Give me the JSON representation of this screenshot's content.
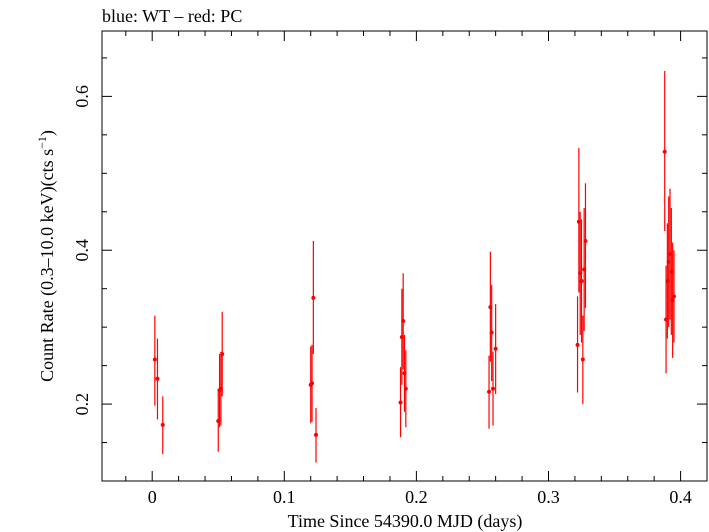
{
  "chart_data": {
    "type": "scatter",
    "title": "blue: WT – red: PC",
    "xlabel": "Time Since 54390.0 MJD (days)",
    "ylabel": "Count Rate (0.3–10.0 keV)(cts s",
    "ylabel_sup": "−1",
    "ylabel_tail": ")",
    "xlim": [
      -0.038,
      0.42
    ],
    "ylim": [
      0.1,
      0.685
    ],
    "x_ticks": [
      0,
      0.1,
      0.2,
      0.3,
      0.4
    ],
    "x_tick_labels": [
      "0",
      "0.1",
      "0.2",
      "0.3",
      "0.4"
    ],
    "y_ticks": [
      0.2,
      0.4,
      0.6
    ],
    "y_tick_labels": [
      "0.2",
      "0.4",
      "0.6"
    ],
    "series": [
      {
        "name": "PC",
        "color": "#ff0000",
        "points": [
          {
            "x": 0.002,
            "y": 0.258,
            "lo": 0.198,
            "hi": 0.315
          },
          {
            "x": 0.004,
            "y": 0.233,
            "lo": 0.18,
            "hi": 0.285
          },
          {
            "x": 0.008,
            "y": 0.173,
            "lo": 0.135,
            "hi": 0.21
          },
          {
            "x": 0.05,
            "y": 0.178,
            "lo": 0.138,
            "hi": 0.22
          },
          {
            "x": 0.051,
            "y": 0.218,
            "lo": 0.17,
            "hi": 0.265
          },
          {
            "x": 0.052,
            "y": 0.22,
            "lo": 0.172,
            "hi": 0.268
          },
          {
            "x": 0.053,
            "y": 0.265,
            "lo": 0.21,
            "hi": 0.32
          },
          {
            "x": 0.12,
            "y": 0.225,
            "lo": 0.175,
            "hi": 0.275
          },
          {
            "x": 0.121,
            "y": 0.227,
            "lo": 0.177,
            "hi": 0.277
          },
          {
            "x": 0.122,
            "y": 0.338,
            "lo": 0.265,
            "hi": 0.412
          },
          {
            "x": 0.124,
            "y": 0.16,
            "lo": 0.124,
            "hi": 0.195
          },
          {
            "x": 0.188,
            "y": 0.202,
            "lo": 0.157,
            "hi": 0.248
          },
          {
            "x": 0.189,
            "y": 0.287,
            "lo": 0.225,
            "hi": 0.35
          },
          {
            "x": 0.19,
            "y": 0.308,
            "lo": 0.245,
            "hi": 0.37
          },
          {
            "x": 0.191,
            "y": 0.24,
            "lo": 0.19,
            "hi": 0.29
          },
          {
            "x": 0.192,
            "y": 0.22,
            "lo": 0.17,
            "hi": 0.27
          },
          {
            "x": 0.255,
            "y": 0.216,
            "lo": 0.168,
            "hi": 0.263
          },
          {
            "x": 0.256,
            "y": 0.326,
            "lo": 0.255,
            "hi": 0.398
          },
          {
            "x": 0.257,
            "y": 0.293,
            "lo": 0.23,
            "hi": 0.355
          },
          {
            "x": 0.258,
            "y": 0.22,
            "lo": 0.172,
            "hi": 0.268
          },
          {
            "x": 0.26,
            "y": 0.272,
            "lo": 0.213,
            "hi": 0.33
          },
          {
            "x": 0.322,
            "y": 0.277,
            "lo": 0.215,
            "hi": 0.34
          },
          {
            "x": 0.323,
            "y": 0.437,
            "lo": 0.345,
            "hi": 0.533
          },
          {
            "x": 0.324,
            "y": 0.37,
            "lo": 0.29,
            "hi": 0.45
          },
          {
            "x": 0.325,
            "y": 0.36,
            "lo": 0.28,
            "hi": 0.44
          },
          {
            "x": 0.326,
            "y": 0.258,
            "lo": 0.2,
            "hi": 0.315
          },
          {
            "x": 0.327,
            "y": 0.375,
            "lo": 0.295,
            "hi": 0.455
          },
          {
            "x": 0.328,
            "y": 0.412,
            "lo": 0.325,
            "hi": 0.487
          },
          {
            "x": 0.388,
            "y": 0.528,
            "lo": 0.425,
            "hi": 0.633
          },
          {
            "x": 0.389,
            "y": 0.31,
            "lo": 0.24,
            "hi": 0.38
          },
          {
            "x": 0.39,
            "y": 0.36,
            "lo": 0.285,
            "hi": 0.435
          },
          {
            "x": 0.391,
            "y": 0.385,
            "lo": 0.3,
            "hi": 0.47
          },
          {
            "x": 0.392,
            "y": 0.395,
            "lo": 0.31,
            "hi": 0.48
          },
          {
            "x": 0.393,
            "y": 0.372,
            "lo": 0.29,
            "hi": 0.455
          },
          {
            "x": 0.394,
            "y": 0.335,
            "lo": 0.26,
            "hi": 0.41
          },
          {
            "x": 0.395,
            "y": 0.34,
            "lo": 0.28,
            "hi": 0.4
          }
        ]
      }
    ]
  }
}
